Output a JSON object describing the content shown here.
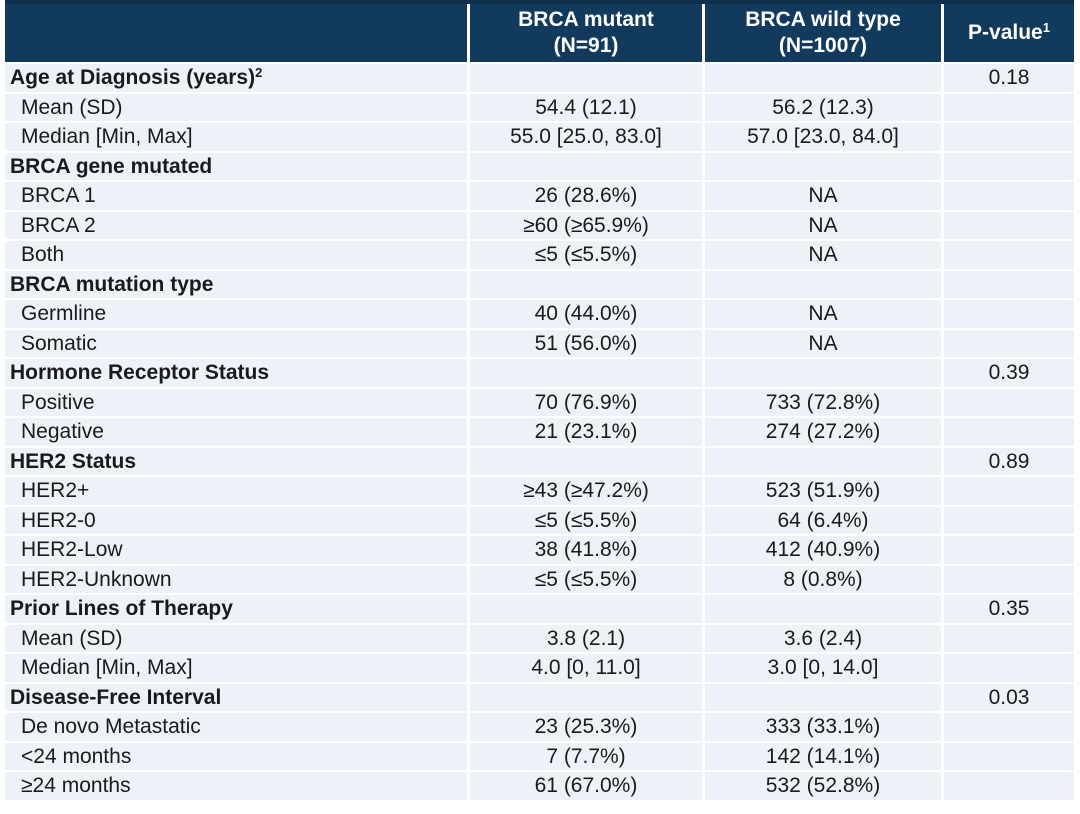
{
  "colors": {
    "header_bg": "#123A5C",
    "header_border": "#0E304F",
    "header_text": "#FFFFFF",
    "row_bg": "#EDF2F8",
    "body_text": "#1A1A1A"
  },
  "table": {
    "columns": [
      {
        "label": "",
        "sub": ""
      },
      {
        "label": "BRCA mutant",
        "sub": "(N=91)"
      },
      {
        "label": "BRCA wild type",
        "sub": "(N=1007)"
      },
      {
        "label": "P-value",
        "sup": "1"
      }
    ],
    "rows": [
      {
        "label": "Age at Diagnosis (years)",
        "sup": "2",
        "section": true,
        "mutant": "",
        "wild": "",
        "p": "0.18"
      },
      {
        "label": "Mean (SD)",
        "section": false,
        "mutant": "54.4 (12.1)",
        "wild": "56.2 (12.3)",
        "p": ""
      },
      {
        "label": "Median [Min, Max]",
        "section": false,
        "mutant": "55.0 [25.0, 83.0]",
        "wild": "57.0 [23.0, 84.0]",
        "p": ""
      },
      {
        "label": "BRCA gene mutated",
        "section": true,
        "mutant": "",
        "wild": "",
        "p": ""
      },
      {
        "label": "BRCA 1",
        "section": false,
        "mutant": "26 (28.6%)",
        "wild": "NA",
        "p": ""
      },
      {
        "label": "BRCA 2",
        "section": false,
        "mutant": "≥60 (≥65.9%)",
        "wild": "NA",
        "p": ""
      },
      {
        "label": "Both",
        "section": false,
        "mutant": "≤5 (≤5.5%)",
        "wild": "NA",
        "p": ""
      },
      {
        "label": "BRCA mutation type",
        "section": true,
        "mutant": "",
        "wild": "",
        "p": ""
      },
      {
        "label": "Germline",
        "section": false,
        "mutant": "40 (44.0%)",
        "wild": "NA",
        "p": ""
      },
      {
        "label": "Somatic",
        "section": false,
        "mutant": "51 (56.0%)",
        "wild": "NA",
        "p": ""
      },
      {
        "label": "Hormone Receptor Status",
        "section": true,
        "mutant": "",
        "wild": "",
        "p": "0.39"
      },
      {
        "label": "Positive",
        "section": false,
        "mutant": "70 (76.9%)",
        "wild": "733 (72.8%)",
        "p": ""
      },
      {
        "label": "Negative",
        "section": false,
        "mutant": "21 (23.1%)",
        "wild": "274 (27.2%)",
        "p": ""
      },
      {
        "label": "HER2 Status",
        "section": true,
        "mutant": "",
        "wild": "",
        "p": "0.89"
      },
      {
        "label": "HER2+",
        "section": false,
        "mutant": "≥43 (≥47.2%)",
        "wild": "523 (51.9%)",
        "p": ""
      },
      {
        "label": "HER2-0",
        "section": false,
        "mutant": "≤5 (≤5.5%)",
        "wild": "64 (6.4%)",
        "p": ""
      },
      {
        "label": "HER2-Low",
        "section": false,
        "mutant": "38 (41.8%)",
        "wild": "412 (40.9%)",
        "p": ""
      },
      {
        "label": "HER2-Unknown",
        "section": false,
        "mutant": "≤5 (≤5.5%)",
        "wild": "8 (0.8%)",
        "p": ""
      },
      {
        "label": "Prior Lines of Therapy",
        "section": true,
        "mutant": "",
        "wild": "",
        "p": "0.35"
      },
      {
        "label": "Mean (SD)",
        "section": false,
        "mutant": "3.8 (2.1)",
        "wild": "3.6 (2.4)",
        "p": ""
      },
      {
        "label": "Median [Min, Max]",
        "section": false,
        "mutant": "4.0 [0, 11.0]",
        "wild": "3.0 [0, 14.0]",
        "p": ""
      },
      {
        "label": "Disease-Free Interval",
        "section": true,
        "mutant": "",
        "wild": "",
        "p": "0.03"
      },
      {
        "label": "De novo Metastatic",
        "section": false,
        "mutant": "23 (25.3%)",
        "wild": "333 (33.1%)",
        "p": ""
      },
      {
        "label": "<24 months",
        "section": false,
        "mutant": "7 (7.7%)",
        "wild": "142 (14.1%)",
        "p": ""
      },
      {
        "label": "≥24 months",
        "section": false,
        "mutant": "61 (67.0%)",
        "wild": "532 (52.8%)",
        "p": ""
      }
    ]
  }
}
